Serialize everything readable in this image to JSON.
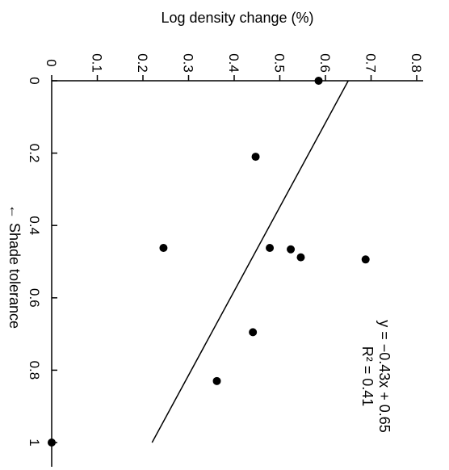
{
  "chart_data": {
    "type": "scatter",
    "title": "",
    "orientation": "rotated-90",
    "xlabel": "← Shade tolerance",
    "ylabel": "Log density change (%)",
    "xlim": [
      0,
      1
    ],
    "ylim": [
      0,
      0.8
    ],
    "x_ticks": [
      "0",
      "0.2",
      "0.4",
      "0.6",
      "0.8",
      "1"
    ],
    "y_ticks": [
      "0",
      "0.1",
      "0.2",
      "0.3",
      "0.4",
      "0.5",
      "0.6",
      "0.7",
      "0.8"
    ],
    "grid": false,
    "points": [
      {
        "x": 0.0,
        "y": 0.585
      },
      {
        "x": 0.21,
        "y": 0.447
      },
      {
        "x": 0.462,
        "y": 0.245
      },
      {
        "x": 0.462,
        "y": 0.478
      },
      {
        "x": 0.466,
        "y": 0.524
      },
      {
        "x": 0.488,
        "y": 0.546
      },
      {
        "x": 0.494,
        "y": 0.688
      },
      {
        "x": 0.695,
        "y": 0.441
      },
      {
        "x": 0.83,
        "y": 0.362
      },
      {
        "x": 1.0,
        "y": 0.0
      }
    ],
    "trendline": {
      "slope": -0.43,
      "intercept": 0.65
    },
    "annotations": [
      "y = −0.43x + 0.65",
      "R² = 0.41"
    ],
    "colors": {
      "points": "#000000",
      "line": "#000000"
    }
  }
}
